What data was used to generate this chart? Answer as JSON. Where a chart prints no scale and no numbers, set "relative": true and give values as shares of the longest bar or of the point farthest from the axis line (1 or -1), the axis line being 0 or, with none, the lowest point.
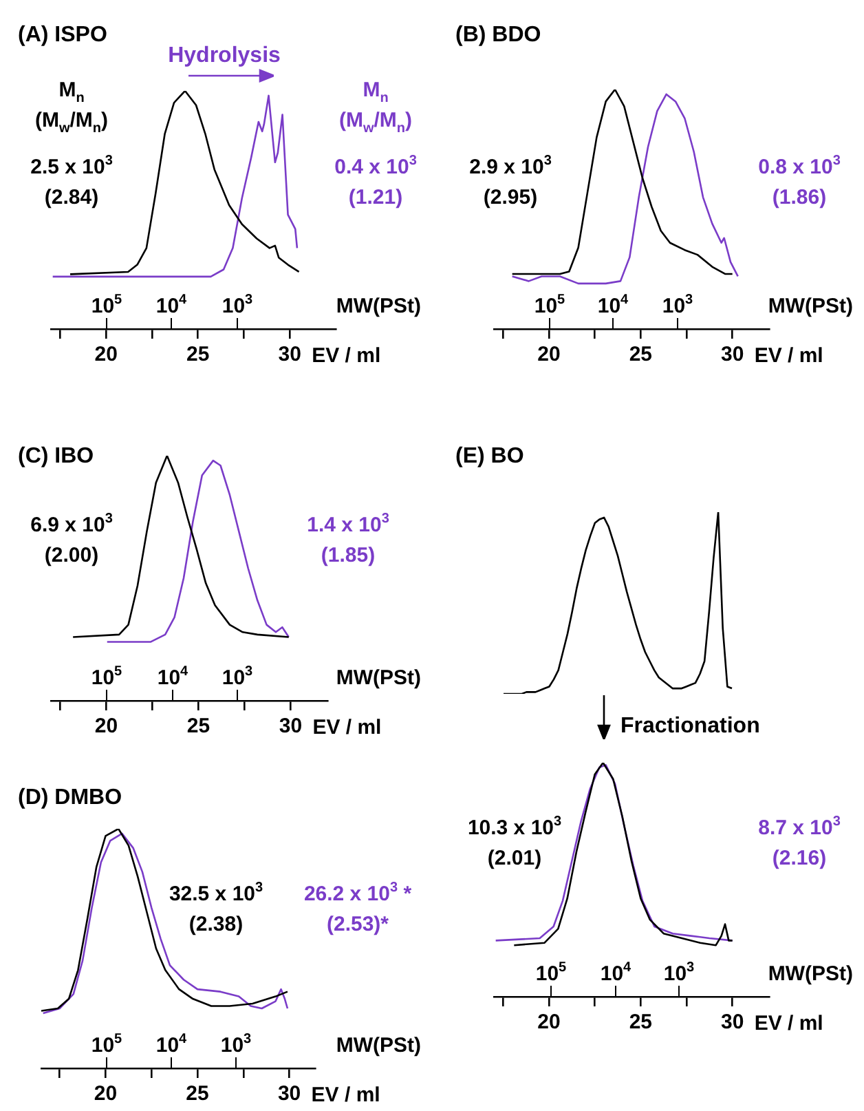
{
  "chart_data": [
    {
      "type": "line",
      "title": "(A) ISPO",
      "xlabel": "EV / ml",
      "x2label": "MW(PSt)",
      "relative": true,
      "tick_labels": "x",
      "log": "x2",
      "xlim": [
        17,
        32.5
      ],
      "xticks": [
        {
          "value": 17.5,
          "label": null
        },
        20,
        {
          "value": 22.5,
          "label": null
        },
        25,
        {
          "value": 27.5,
          "label": null
        },
        30
      ],
      "x2lim": [
        700000,
        30
      ],
      "x2ticks": [
        {
          "value": 100000,
          "label": "10$^{5}$"
        },
        {
          "value": 10000,
          "label": "10$^{4}$"
        },
        {
          "value": 1000,
          "label": "10$^{3}$"
        }
      ],
      "annotations": [
        "Hydrolysis"
      ],
      "series": [
        {
          "name": "M$_{n}$\n(M$_{w}$/M$_{n}$)\n\n2.5 x 10$^{3}$\n(2.84)",
          "color": "#000000",
          "x": [
            18.05,
            21.2,
            21.7,
            22.2,
            22.7,
            23.2,
            23.7,
            24.3,
            24.9,
            25.4,
            25.9,
            26.7,
            27.4,
            28.2,
            28.9,
            29.2,
            29.4,
            29.9,
            30.5
          ],
          "values": [
            0.23,
            0.24,
            0.27,
            0.34,
            0.57,
            0.82,
            0.95,
            1,
            0.94,
            0.82,
            0.67,
            0.52,
            0.44,
            0.38,
            0.34,
            0.35,
            0.3,
            0.27,
            0.24
          ]
        },
        {
          "name": "M$_{n}$\n(M$_{w}$/M$_{n}$)\n\n0.4 x 10$^{3}$\n(1.21)",
          "color": "#7a3cc8",
          "x": [
            17.1,
            25.7,
            26.4,
            26.9,
            27.4,
            27.9,
            28.3,
            28.5,
            28.6,
            28.85,
            29.2,
            29.35,
            29.6,
            29.9,
            30.3,
            30.4
          ],
          "values": [
            0.22,
            0.22,
            0.25,
            0.34,
            0.55,
            0.72,
            0.87,
            0.83,
            0.86,
            0.98,
            0.7,
            0.74,
            0.9,
            0.48,
            0.42,
            0.34
          ]
        }
      ]
    },
    {
      "type": "line",
      "title": "(B) BDO",
      "xlabel": "EV / ml",
      "x2label": "MW(PSt)",
      "relative": true,
      "tick_labels": "x",
      "log": "x2",
      "xlim": [
        17,
        32
      ],
      "xticks": [
        {
          "value": 17.5,
          "label": null
        },
        20,
        {
          "value": 22.5,
          "label": null
        },
        25,
        {
          "value": 27.5,
          "label": null
        },
        30
      ],
      "x2lim": [
        730000,
        35
      ],
      "x2ticks": [
        {
          "value": 100000,
          "label": "10$^{5}$"
        },
        {
          "value": 10000,
          "label": "10$^{4}$"
        },
        {
          "value": 1000,
          "label": "10$^{3}$"
        }
      ],
      "series": [
        {
          "name": "2.9 x 10$^{3}$\n(2.95)",
          "color": "#000000",
          "x": [
            18.0,
            20.6,
            21.1,
            21.6,
            22.1,
            22.6,
            23.1,
            23.6,
            24.1,
            24.6,
            25.1,
            25.6,
            26.1,
            26.6,
            27.4,
            28.1,
            28.9,
            29.6,
            30.0
          ],
          "values": [
            0.23,
            0.23,
            0.24,
            0.34,
            0.57,
            0.8,
            0.95,
            1,
            0.93,
            0.78,
            0.63,
            0.51,
            0.41,
            0.36,
            0.33,
            0.31,
            0.26,
            0.23,
            0.23
          ]
        },
        {
          "name": "0.8 x 10$^{3}$\n(1.86)",
          "color": "#7a3cc8",
          "x": [
            18.0,
            18.9,
            19.6,
            20.6,
            21.6,
            23.1,
            23.9,
            24.4,
            24.9,
            25.4,
            25.9,
            26.4,
            26.9,
            27.4,
            27.9,
            28.4,
            28.9,
            29.4,
            29.55,
            29.9,
            30.3
          ],
          "values": [
            0.22,
            0.2,
            0.22,
            0.22,
            0.19,
            0.19,
            0.2,
            0.3,
            0.55,
            0.76,
            0.91,
            0.98,
            0.95,
            0.88,
            0.74,
            0.55,
            0.44,
            0.36,
            0.38,
            0.28,
            0.22
          ]
        }
      ]
    },
    {
      "type": "line",
      "title": "(C) IBO",
      "xlabel": "EV / ml",
      "x2label": "MW(PSt)",
      "relative": true,
      "tick_labels": "x",
      "log": "x2",
      "xlim": [
        17,
        32
      ],
      "xticks": [
        {
          "value": 17.5,
          "label": null
        },
        20,
        {
          "value": 22.5,
          "label": null
        },
        25,
        {
          "value": 27.5,
          "label": null
        },
        30
      ],
      "x2lim": [
        700000,
        42
      ],
      "x2ticks": [
        {
          "value": 100000,
          "label": "10$^{5}$"
        },
        {
          "value": 10000,
          "label": "10$^{4}$"
        },
        {
          "value": 1000,
          "label": "10$^{3}$"
        }
      ],
      "series": [
        {
          "name": "6.9 x 10$^{3}$\n(2.00)",
          "color": "#000000",
          "x": [
            18.2,
            20.7,
            21.2,
            21.7,
            22.2,
            22.7,
            23.3,
            23.9,
            24.4,
            24.9,
            25.4,
            25.9,
            26.7,
            27.4,
            28.2,
            29.9
          ],
          "values": [
            0.26,
            0.27,
            0.31,
            0.47,
            0.69,
            0.89,
            1,
            0.89,
            0.75,
            0.62,
            0.48,
            0.39,
            0.31,
            0.28,
            0.27,
            0.26
          ]
        },
        {
          "name": "1.4 x 10$^{3}$\n(1.85)",
          "color": "#7a3cc8",
          "x": [
            20.05,
            22.4,
            23.2,
            23.7,
            24.2,
            24.7,
            25.2,
            25.8,
            26.2,
            26.7,
            27.2,
            27.7,
            28.2,
            28.7,
            29.2,
            29.55,
            29.9
          ],
          "values": [
            0.24,
            0.24,
            0.27,
            0.34,
            0.5,
            0.73,
            0.92,
            0.98,
            0.96,
            0.84,
            0.69,
            0.54,
            0.41,
            0.31,
            0.28,
            0.3,
            0.26
          ]
        }
      ]
    },
    {
      "type": "line",
      "title": "(E) BO",
      "relative": true,
      "tick_labels": false,
      "annotations": [
        "Fractionation"
      ],
      "categories": [
        null,
        null,
        null,
        null,
        null,
        null,
        null,
        null,
        null,
        null,
        null,
        null,
        null,
        null,
        null,
        null,
        null,
        null,
        null,
        null,
        null,
        null,
        null,
        null,
        null,
        null,
        null,
        null,
        null,
        null,
        null,
        null,
        null,
        null,
        null,
        null,
        null,
        null,
        null,
        null,
        null,
        null,
        null,
        null,
        null,
        null,
        null,
        null,
        null,
        null,
        null
      ],
      "series": [
        {
          "color": "#000000",
          "values": [
            0,
            0,
            0,
            0,
            0,
            0.01,
            0.01,
            0.01,
            0.02,
            0.03,
            0.04,
            0.08,
            0.13,
            0.23,
            0.33,
            0.45,
            0.58,
            0.69,
            0.79,
            0.87,
            0.94,
            0.96,
            0.97,
            0.92,
            0.84,
            0.76,
            0.66,
            0.56,
            0.47,
            0.38,
            0.3,
            0.23,
            0.18,
            0.13,
            0.09,
            0.07,
            0.05,
            0.03,
            0.03,
            0.03,
            0.04,
            0.05,
            0.06,
            0.11,
            0.18,
            0.45,
            0.75,
            1,
            0.36,
            0.04,
            0.03
          ]
        }
      ]
    },
    {
      "type": "line",
      "title": "(D) DMBO",
      "xlabel": "EV / ml",
      "x2label": "MW(PSt)",
      "relative": true,
      "tick_labels": "x",
      "log": "x2",
      "xlim": [
        16.5,
        31.4
      ],
      "xticks": [
        {
          "value": 17.5,
          "label": null
        },
        20,
        {
          "value": 22.5,
          "label": null
        },
        25,
        {
          "value": 27.5,
          "label": null
        },
        30
      ],
      "x2lim": [
        980000,
        58
      ],
      "x2ticks": [
        {
          "value": 100000,
          "label": "10$^{5}$"
        },
        {
          "value": 10000,
          "label": "10$^{4}$"
        },
        {
          "value": 1000,
          "label": "10$^{3}$"
        }
      ],
      "series": [
        {
          "name": "32.5 x 10$^{3}$\n(2.38)",
          "color": "#000000",
          "x": [
            16.5,
            17.4,
            18.0,
            18.5,
            19.0,
            19.5,
            20.0,
            20.7,
            21.25,
            21.75,
            22.25,
            22.75,
            23.25,
            24.0,
            24.75,
            25.75,
            26.75,
            28.0,
            29.25,
            29.9
          ],
          "values": [
            0.24,
            0.25,
            0.29,
            0.41,
            0.62,
            0.84,
            0.97,
            1,
            0.93,
            0.8,
            0.65,
            0.5,
            0.41,
            0.33,
            0.29,
            0.26,
            0.26,
            0.27,
            0.3,
            0.32
          ]
        },
        {
          "name": "26.2 x 10$^{3}$ *\n(2.53)*",
          "color": "#7a3cc8",
          "x": [
            16.6,
            17.5,
            18.25,
            18.75,
            19.25,
            19.75,
            20.25,
            20.9,
            21.5,
            22.0,
            22.5,
            23.0,
            23.5,
            24.25,
            25,
            26.25,
            27.25,
            27.9,
            28.5,
            29.25,
            29.55,
            29.75,
            29.9
          ],
          "values": [
            0.23,
            0.25,
            0.31,
            0.45,
            0.67,
            0.86,
            0.95,
            0.98,
            0.92,
            0.82,
            0.67,
            0.54,
            0.43,
            0.37,
            0.33,
            0.32,
            0.3,
            0.26,
            0.25,
            0.28,
            0.33,
            0.29,
            0.25
          ]
        }
      ]
    },
    {
      "type": "line",
      "xlabel": "EV / ml",
      "x2label": "MW(PSt)",
      "relative": true,
      "tick_labels": "x",
      "log": "x2",
      "xlim": [
        17,
        32
      ],
      "xticks": [
        {
          "value": 17.5,
          "label": null
        },
        20,
        {
          "value": 22.5,
          "label": null
        },
        25,
        {
          "value": 27.5,
          "label": null
        },
        30
      ],
      "x2lim": [
        780000,
        38
      ],
      "x2ticks": [
        {
          "value": 100000,
          "label": "10$^{5}$"
        },
        {
          "value": 10000,
          "label": "10$^{4}$"
        },
        {
          "value": 1000,
          "label": "10$^{3}$"
        }
      ],
      "series": [
        {
          "name": "10.3 x 10$^{3}$\n(2.01)",
          "color": "#000000",
          "x": [
            18.1,
            19.75,
            20.5,
            21.0,
            21.5,
            22.0,
            22.5,
            22.95,
            23.5,
            24.0,
            24.5,
            25.0,
            25.5,
            26.25,
            27.25,
            28.25,
            29.1,
            29.4,
            29.6,
            29.8,
            30
          ],
          "values": [
            0.22,
            0.23,
            0.29,
            0.42,
            0.62,
            0.79,
            0.95,
            1,
            0.93,
            0.77,
            0.58,
            0.42,
            0.33,
            0.27,
            0.25,
            0.23,
            0.22,
            0.26,
            0.31,
            0.24,
            0.24
          ]
        },
        {
          "name": "8.7 x 10$^{3}$\n(2.16)",
          "color": "#7a3cc8",
          "x": [
            17.1,
            19.5,
            20.25,
            20.75,
            21.25,
            21.75,
            22.25,
            22.75,
            23.1,
            23.6,
            24.1,
            24.6,
            25.1,
            25.75,
            26.75,
            27.75,
            28.75,
            30
          ],
          "values": [
            0.24,
            0.25,
            0.3,
            0.41,
            0.58,
            0.75,
            0.89,
            0.98,
            0.99,
            0.91,
            0.73,
            0.56,
            0.41,
            0.3,
            0.27,
            0.26,
            0.25,
            0.24
          ]
        }
      ]
    }
  ]
}
